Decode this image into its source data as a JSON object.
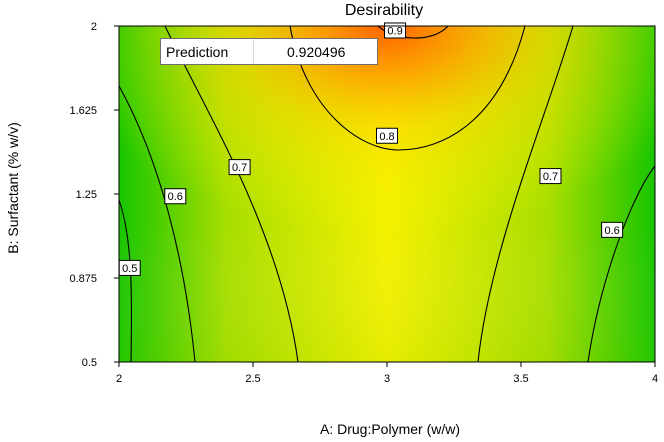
{
  "chart_data": {
    "type": "contour",
    "title": "Desirability",
    "xlabel": "A: Drug:Polymer (w/w)",
    "ylabel": "B: Surfactant  (% w/v)",
    "xlim": [
      2,
      4
    ],
    "ylim": [
      0.5,
      2
    ],
    "x_ticks": [
      "2",
      "2.5",
      "3",
      "3.5",
      "4"
    ],
    "y_ticks": [
      "0.5",
      "0.875",
      "1.25",
      "1.625",
      "2"
    ],
    "contour_levels": [
      {
        "label": "0.5",
        "x": 2.04,
        "y": 0.92
      },
      {
        "label": "0.6",
        "x": 2.21,
        "y": 1.24
      },
      {
        "label": "0.6",
        "x": 3.84,
        "y": 1.09
      },
      {
        "label": "0.7",
        "x": 2.45,
        "y": 1.37
      },
      {
        "label": "0.7",
        "x": 3.61,
        "y": 1.33
      },
      {
        "label": "0.8",
        "x": 3.0,
        "y": 1.51
      },
      {
        "label": "0.9",
        "x": 3.03,
        "y": 1.98
      }
    ],
    "colormap": [
      "#00cc00",
      "#ffff00",
      "#ff7700"
    ],
    "prediction": {
      "label": "Prediction",
      "value": "0.920496"
    }
  }
}
